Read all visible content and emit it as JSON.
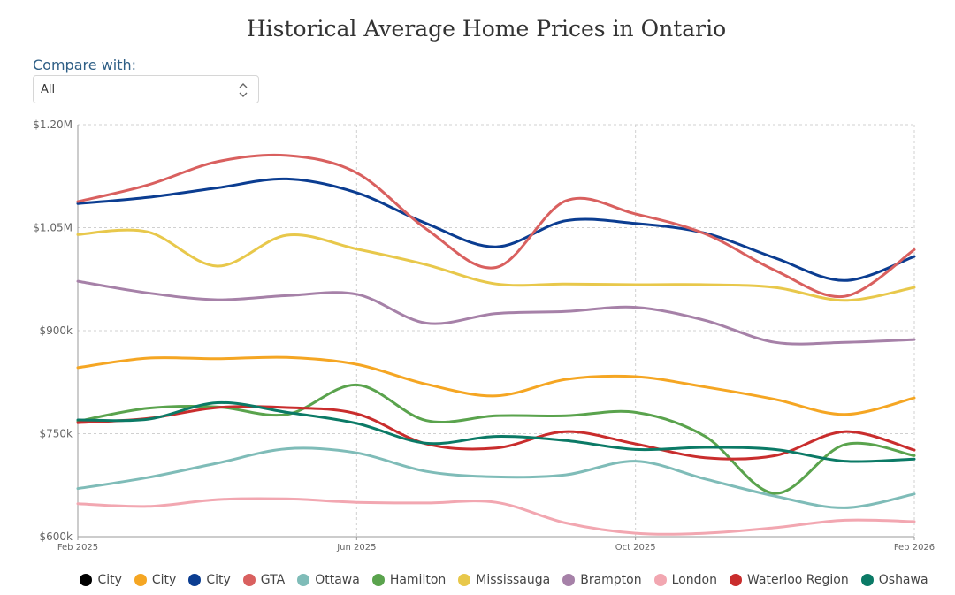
{
  "chart_data": {
    "type": "line",
    "title": "Historical Average Home Prices in Ontario",
    "xlabel": "",
    "ylabel": "",
    "x": [
      "Feb 2025",
      "Mar 2025",
      "Apr 2025",
      "May 2025",
      "Jun 2025",
      "Jul 2025",
      "Aug 2025",
      "Sep 2025",
      "Oct 2025",
      "Nov 2025",
      "Dec 2025",
      "Jan 2026",
      "Feb 2026"
    ],
    "x_tick_labels": [
      "Feb 2025",
      "Jun 2025",
      "Oct 2025",
      "Feb 2026"
    ],
    "x_tick_indices": [
      0,
      4,
      8,
      12
    ],
    "y_tick_values": [
      600000,
      750000,
      900000,
      1050000,
      1200000
    ],
    "y_tick_labels": [
      "$600k",
      "$750k",
      "$900k",
      "$1.05M",
      "$1.20M"
    ],
    "ylim": [
      600000,
      1200000
    ],
    "grid": true,
    "legend_position": "bottom",
    "series": [
      {
        "name": "City",
        "color": "#000000",
        "values": null
      },
      {
        "name": "City",
        "color": "#f5a623",
        "values": [
          846000,
          860000,
          859000,
          861000,
          851000,
          822000,
          805000,
          829000,
          833000,
          818000,
          800000,
          778000,
          802000
        ]
      },
      {
        "name": "City",
        "color": "#0b3d91",
        "values": [
          1085000,
          1094000,
          1108000,
          1121000,
          1101000,
          1056000,
          1022000,
          1060000,
          1056000,
          1042000,
          1006000,
          973000,
          1008000
        ]
      },
      {
        "name": "GTA",
        "color": "#d9605f",
        "values": [
          1088000,
          1112000,
          1146000,
          1155000,
          1130000,
          1048000,
          992000,
          1089000,
          1070000,
          1041000,
          988000,
          950000,
          1018000
        ]
      },
      {
        "name": "Ottawa",
        "color": "#7fbcb8",
        "values": [
          670000,
          686000,
          707000,
          728000,
          722000,
          695000,
          687000,
          690000,
          710000,
          684000,
          659000,
          642000,
          662000
        ]
      },
      {
        "name": "Hamilton",
        "color": "#5aa34d",
        "values": [
          768000,
          787000,
          789000,
          778000,
          821000,
          769000,
          776000,
          776000,
          781000,
          746000,
          663000,
          734000,
          718000
        ]
      },
      {
        "name": "Mississauga",
        "color": "#e8c84b",
        "values": [
          1040000,
          1044000,
          994000,
          1039000,
          1019000,
          996000,
          968000,
          968000,
          967000,
          967000,
          963000,
          944000,
          963000
        ]
      },
      {
        "name": "Brampton",
        "color": "#a681a8",
        "values": [
          972000,
          955000,
          945000,
          951000,
          953000,
          911000,
          925000,
          928000,
          934000,
          915000,
          883000,
          883000,
          887000
        ]
      },
      {
        "name": "London",
        "color": "#f2a7b1",
        "values": [
          648000,
          644000,
          654000,
          655000,
          650000,
          649000,
          650000,
          620000,
          605000,
          605000,
          613000,
          624000,
          622000
        ]
      },
      {
        "name": "Waterloo Region",
        "color": "#c92d2d",
        "values": [
          766000,
          772000,
          788000,
          788000,
          779000,
          735000,
          729000,
          753000,
          735000,
          715000,
          718000,
          753000,
          726000
        ]
      },
      {
        "name": "Oshawa",
        "color": "#0b7a66",
        "values": [
          770000,
          771000,
          795000,
          781000,
          765000,
          736000,
          746000,
          740000,
          727000,
          730000,
          727000,
          710000,
          713000
        ]
      }
    ]
  },
  "controls": {
    "compare_label": "Compare with:",
    "compare_value": "All"
  }
}
